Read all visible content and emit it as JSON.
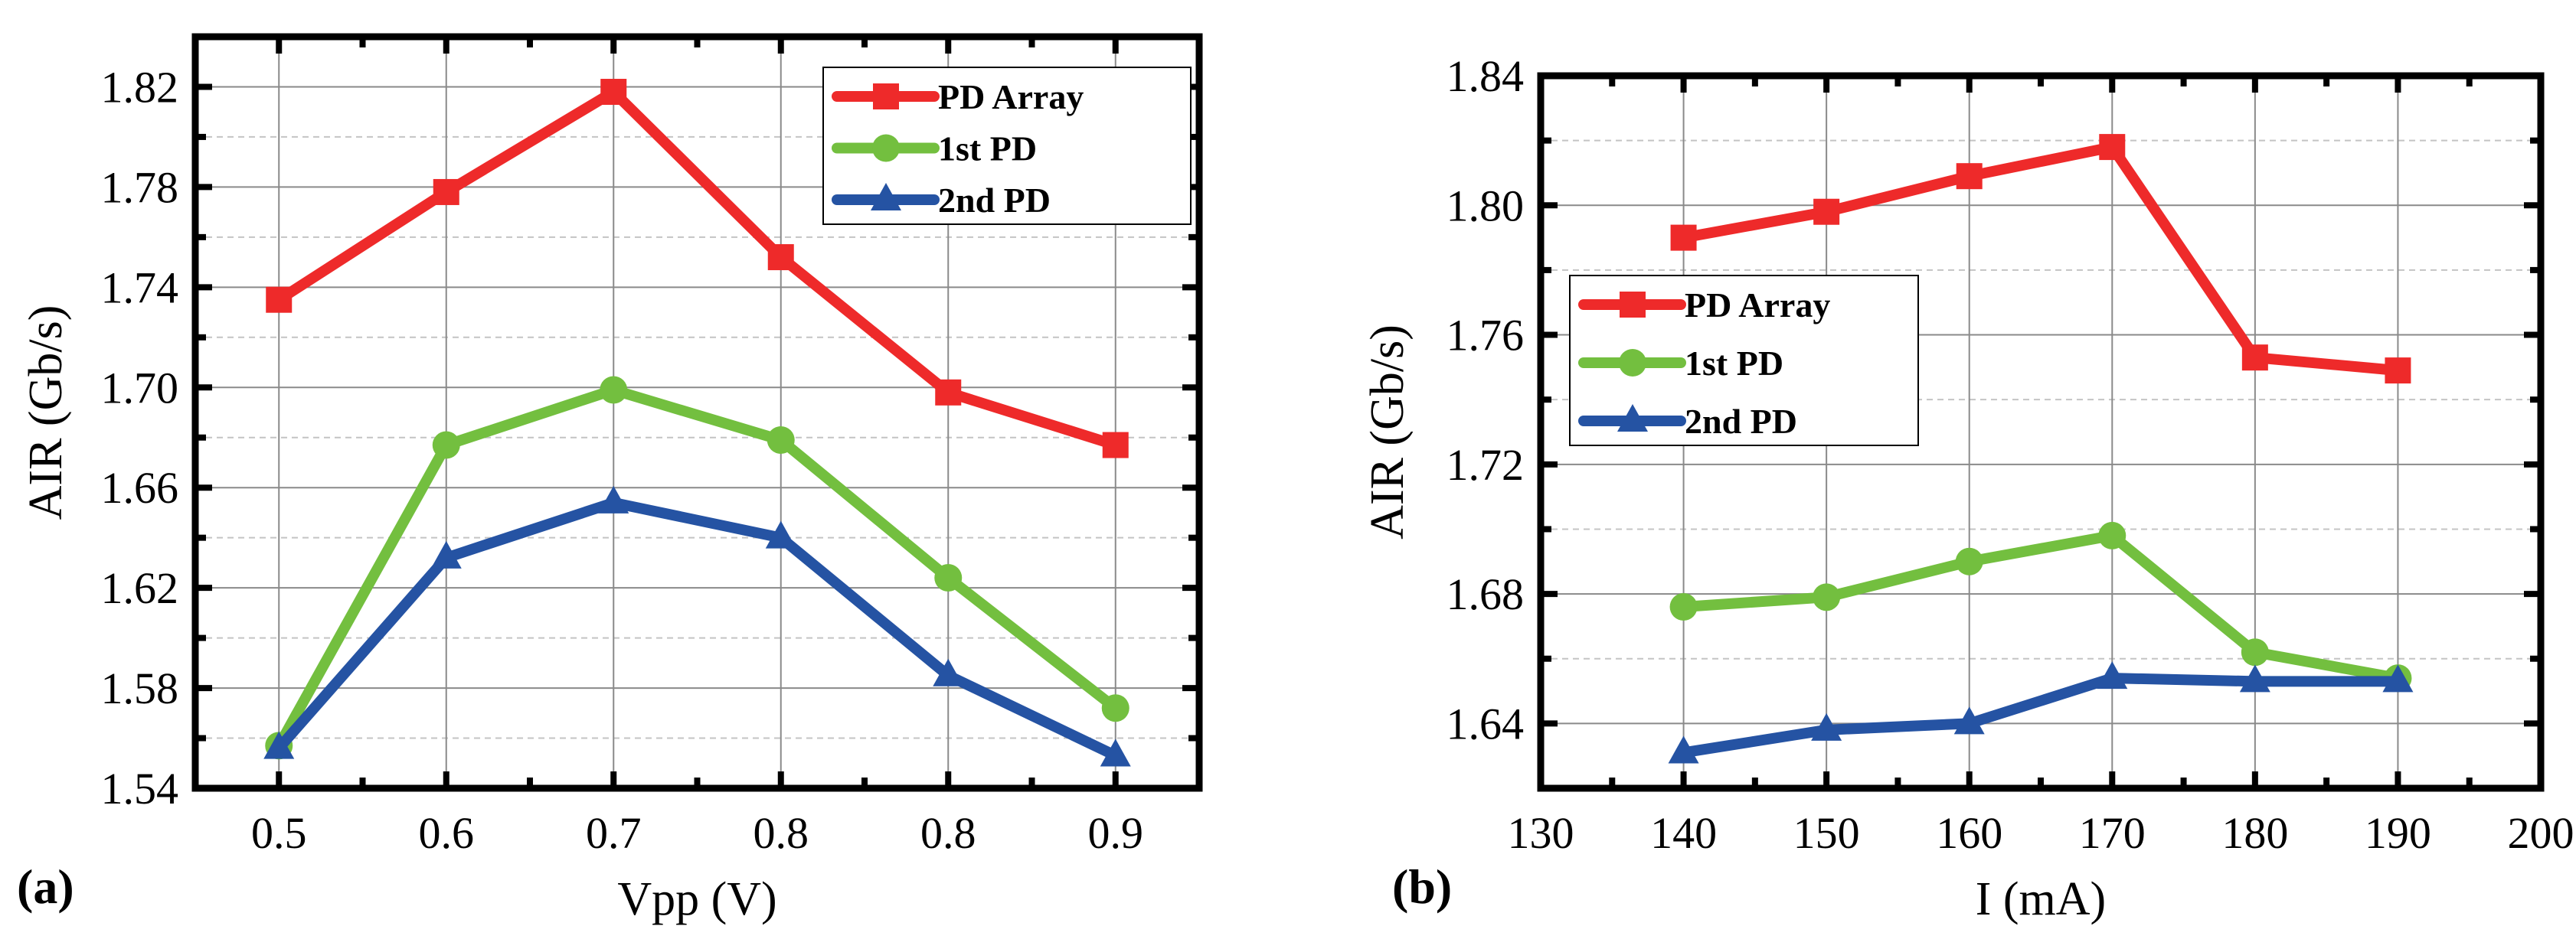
{
  "chart_data": [
    {
      "type": "line",
      "panel_label": "(a)",
      "xlabel": "Vpp (V)",
      "ylabel": "AIR (Gb/s)",
      "categories": [
        "0.5",
        "0.6",
        "0.7",
        "0.8",
        "0.8",
        "0.9"
      ],
      "ylim": [
        1.54,
        1.84
      ],
      "yticks": [
        "1.54",
        "1.58",
        "1.62",
        "1.66",
        "1.70",
        "1.74",
        "1.78",
        "1.82"
      ],
      "grid": true,
      "legend_position": "top-right",
      "series": [
        {
          "name": "PD Array",
          "color": "#ee2a2a",
          "marker": "square",
          "values": [
            1.735,
            1.778,
            1.818,
            1.752,
            1.698,
            1.677
          ]
        },
        {
          "name": "1st PD",
          "color": "#73bf3f",
          "marker": "circle",
          "values": [
            1.557,
            1.677,
            1.699,
            1.679,
            1.624,
            1.572
          ]
        },
        {
          "name": "2nd PD",
          "color": "#2553a3",
          "marker": "triangle",
          "values": [
            1.556,
            1.632,
            1.654,
            1.64,
            1.585,
            1.553
          ]
        }
      ]
    },
    {
      "type": "line",
      "panel_label": "(b)",
      "xlabel": "I (mA)",
      "ylabel": "AIR (Gb/s)",
      "x": [
        140,
        150,
        160,
        170,
        180,
        190
      ],
      "xlim": [
        130,
        200
      ],
      "xticks": [
        "130",
        "140",
        "150",
        "160",
        "170",
        "180",
        "190",
        "200"
      ],
      "ylim": [
        1.62,
        1.84
      ],
      "yticks": [
        "1.64",
        "1.68",
        "1.72",
        "1.76",
        "1.80",
        "1.84"
      ],
      "grid": true,
      "legend_position": "center-left",
      "series": [
        {
          "name": "PD Array",
          "color": "#ee2a2a",
          "marker": "square",
          "values": [
            1.79,
            1.798,
            1.809,
            1.818,
            1.753,
            1.749
          ]
        },
        {
          "name": "1st PD",
          "color": "#73bf3f",
          "marker": "circle",
          "values": [
            1.676,
            1.679,
            1.69,
            1.698,
            1.662,
            1.654
          ]
        },
        {
          "name": "2nd PD",
          "color": "#2553a3",
          "marker": "triangle",
          "values": [
            1.631,
            1.638,
            1.64,
            1.654,
            1.653,
            1.653
          ]
        }
      ]
    }
  ]
}
